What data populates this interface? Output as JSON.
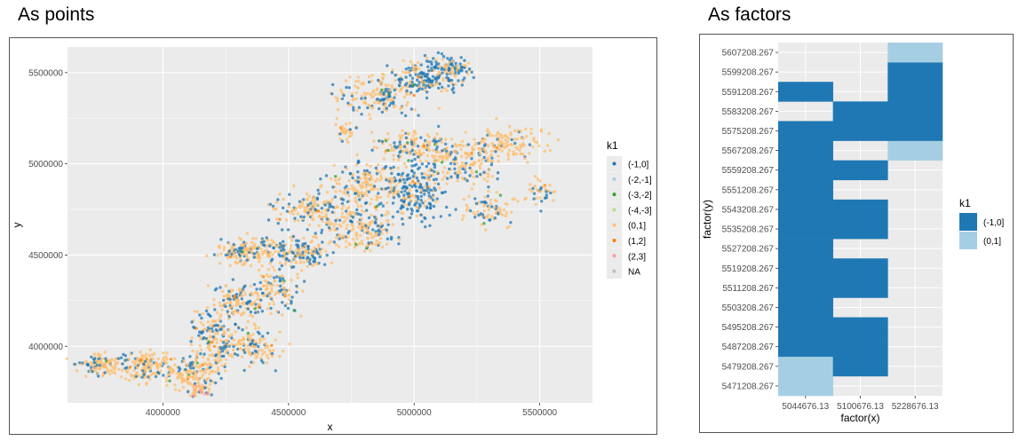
{
  "headings": {
    "left": "As points",
    "right": "As factors"
  },
  "colors": {
    "panel_bg": "#ebebeb",
    "grid": "#ffffff",
    "blue": "#1f78b4",
    "light_blue": "#a6cee3",
    "orange_light": "#fdbf6f",
    "orange": "#ff7f00",
    "pink": "#fb9a99",
    "green": "#33a02c",
    "light_green": "#b2df8a",
    "grey": "#bdbdbd"
  },
  "chart_data": [
    {
      "type": "scatter",
      "title": "",
      "xlabel": "x",
      "ylabel": "y",
      "xlim": [
        3620000,
        5710000
      ],
      "ylim": [
        3690000,
        5640000
      ],
      "x_ticks": [
        4000000,
        4500000,
        5000000,
        5500000
      ],
      "x_tick_labels": [
        "4000000",
        "4500000",
        "5000000",
        "5500000"
      ],
      "y_ticks": [
        4000000,
        4500000,
        5000000,
        5500000
      ],
      "y_tick_labels": [
        "4000000",
        "4500000",
        "5000000",
        "5500000"
      ],
      "grid": true,
      "legend": {
        "title": "k1",
        "position": "right",
        "entries": [
          {
            "label": "(-1,0]",
            "color": "#1f78b4"
          },
          {
            "label": "(-2,-1]",
            "color": "#a6cee3"
          },
          {
            "label": "(-3,-2]",
            "color": "#33a02c"
          },
          {
            "label": "(-4,-3]",
            "color": "#b2df8a"
          },
          {
            "label": "(0,1]",
            "color": "#fdbf6f"
          },
          {
            "label": "(1,2]",
            "color": "#ff7f00"
          },
          {
            "label": "(2,3]",
            "color": "#fb9a99"
          },
          {
            "label": "NA",
            "color": "#bdbdbd"
          }
        ]
      },
      "clusters": [
        {
          "cx": 3750000,
          "cy": 3900000,
          "sx": 60000,
          "sy": 45000,
          "n": 110,
          "blue": 0.3
        },
        {
          "cx": 3950000,
          "cy": 3880000,
          "sx": 90000,
          "sy": 60000,
          "n": 160,
          "blue": 0.25
        },
        {
          "cx": 4120000,
          "cy": 3850000,
          "sx": 70000,
          "sy": 70000,
          "n": 130,
          "blue": 0.2
        },
        {
          "cx": 4150000,
          "cy": 3760000,
          "sx": 35000,
          "sy": 25000,
          "n": 40,
          "blue": 0.05,
          "red": 0.4
        },
        {
          "cx": 4200000,
          "cy": 4050000,
          "sx": 60000,
          "sy": 110000,
          "n": 150,
          "blue": 0.35
        },
        {
          "cx": 4350000,
          "cy": 4000000,
          "sx": 80000,
          "sy": 80000,
          "n": 140,
          "blue": 0.25
        },
        {
          "cx": 4300000,
          "cy": 4250000,
          "sx": 70000,
          "sy": 70000,
          "n": 120,
          "blue": 0.4
        },
        {
          "cx": 4450000,
          "cy": 4300000,
          "sx": 70000,
          "sy": 90000,
          "n": 110,
          "blue": 0.3
        },
        {
          "cx": 4350000,
          "cy": 4520000,
          "sx": 110000,
          "sy": 50000,
          "n": 170,
          "blue": 0.3
        },
        {
          "cx": 4550000,
          "cy": 4520000,
          "sx": 90000,
          "sy": 70000,
          "n": 160,
          "blue": 0.45
        },
        {
          "cx": 4600000,
          "cy": 4750000,
          "sx": 110000,
          "sy": 70000,
          "n": 170,
          "blue": 0.3
        },
        {
          "cx": 4800000,
          "cy": 4650000,
          "sx": 90000,
          "sy": 90000,
          "n": 160,
          "blue": 0.25
        },
        {
          "cx": 4800000,
          "cy": 4900000,
          "sx": 100000,
          "sy": 80000,
          "n": 160,
          "blue": 0.2
        },
        {
          "cx": 5000000,
          "cy": 4850000,
          "sx": 90000,
          "sy": 120000,
          "n": 220,
          "blue": 0.65
        },
        {
          "cx": 5000000,
          "cy": 5100000,
          "sx": 120000,
          "sy": 60000,
          "n": 150,
          "blue": 0.25
        },
        {
          "cx": 5200000,
          "cy": 5000000,
          "sx": 120000,
          "sy": 90000,
          "n": 170,
          "blue": 0.3
        },
        {
          "cx": 5380000,
          "cy": 5120000,
          "sx": 110000,
          "sy": 70000,
          "n": 120,
          "blue": 0.15
        },
        {
          "cx": 5300000,
          "cy": 4750000,
          "sx": 80000,
          "sy": 70000,
          "n": 80,
          "blue": 0.3
        },
        {
          "cx": 5500000,
          "cy": 4850000,
          "sx": 40000,
          "sy": 60000,
          "n": 40,
          "blue": 0.4
        },
        {
          "cx": 4850000,
          "cy": 5380000,
          "sx": 120000,
          "sy": 90000,
          "n": 180,
          "blue": 0.3
        },
        {
          "cx": 5050000,
          "cy": 5480000,
          "sx": 90000,
          "sy": 70000,
          "n": 170,
          "blue": 0.75
        },
        {
          "cx": 4730000,
          "cy": 5180000,
          "sx": 30000,
          "sy": 50000,
          "n": 30,
          "blue": 0.1
        },
        {
          "cx": 5150000,
          "cy": 5530000,
          "sx": 60000,
          "sy": 50000,
          "n": 80,
          "blue": 0.6
        }
      ]
    },
    {
      "type": "heatmap",
      "xlabel": "factor(x)",
      "ylabel": "factor(y)",
      "categories_x": [
        "5044676.13",
        "5100676.13",
        "5228676.13"
      ],
      "categories_y": [
        "5471208.267",
        "5479208.267",
        "5487208.267",
        "5495208.267",
        "5503208.267",
        "5511208.267",
        "5519208.267",
        "5527208.267",
        "5535208.267",
        "5543208.267",
        "5551208.267",
        "5559208.267",
        "5567208.267",
        "5575208.267",
        "5583208.267",
        "5591208.267",
        "5599208.267",
        "5607208.267"
      ],
      "legend": {
        "title": "k1",
        "position": "right",
        "entries": [
          {
            "label": "(-1,0]",
            "color": "#1f78b4"
          },
          {
            "label": "(0,1]",
            "color": "#a6cee3"
          }
        ]
      },
      "cells": [
        {
          "x": "5044676.13",
          "y": "5471208.267",
          "k1": "(0,1]"
        },
        {
          "x": "5044676.13",
          "y": "5479208.267",
          "k1": "(0,1]"
        },
        {
          "x": "5044676.13",
          "y": "5487208.267",
          "k1": "(-1,0]"
        },
        {
          "x": "5044676.13",
          "y": "5495208.267",
          "k1": "(-1,0]"
        },
        {
          "x": "5044676.13",
          "y": "5503208.267",
          "k1": "(-1,0]"
        },
        {
          "x": "5044676.13",
          "y": "5511208.267",
          "k1": "(-1,0]"
        },
        {
          "x": "5044676.13",
          "y": "5519208.267",
          "k1": "(-1,0]"
        },
        {
          "x": "5044676.13",
          "y": "5527208.267",
          "k1": "(-1,0]"
        },
        {
          "x": "5044676.13",
          "y": "5535208.267",
          "k1": "(-1,0]"
        },
        {
          "x": "5044676.13",
          "y": "5543208.267",
          "k1": "(-1,0]"
        },
        {
          "x": "5044676.13",
          "y": "5551208.267",
          "k1": "(-1,0]"
        },
        {
          "x": "5044676.13",
          "y": "5559208.267",
          "k1": "(-1,0]"
        },
        {
          "x": "5044676.13",
          "y": "5567208.267",
          "k1": "(-1,0]"
        },
        {
          "x": "5044676.13",
          "y": "5575208.267",
          "k1": "(-1,0]"
        },
        {
          "x": "5044676.13",
          "y": "5591208.267",
          "k1": "(-1,0]"
        },
        {
          "x": "5100676.13",
          "y": "5479208.267",
          "k1": "(-1,0]"
        },
        {
          "x": "5100676.13",
          "y": "5487208.267",
          "k1": "(-1,0]"
        },
        {
          "x": "5100676.13",
          "y": "5495208.267",
          "k1": "(-1,0]"
        },
        {
          "x": "5100676.13",
          "y": "5511208.267",
          "k1": "(-1,0]"
        },
        {
          "x": "5100676.13",
          "y": "5519208.267",
          "k1": "(-1,0]"
        },
        {
          "x": "5100676.13",
          "y": "5535208.267",
          "k1": "(-1,0]"
        },
        {
          "x": "5100676.13",
          "y": "5543208.267",
          "k1": "(-1,0]"
        },
        {
          "x": "5100676.13",
          "y": "5559208.267",
          "k1": "(-1,0]"
        },
        {
          "x": "5100676.13",
          "y": "5575208.267",
          "k1": "(-1,0]"
        },
        {
          "x": "5100676.13",
          "y": "5583208.267",
          "k1": "(-1,0]"
        },
        {
          "x": "5228676.13",
          "y": "5567208.267",
          "k1": "(0,1]"
        },
        {
          "x": "5228676.13",
          "y": "5575208.267",
          "k1": "(-1,0]"
        },
        {
          "x": "5228676.13",
          "y": "5583208.267",
          "k1": "(-1,0]"
        },
        {
          "x": "5228676.13",
          "y": "5591208.267",
          "k1": "(-1,0]"
        },
        {
          "x": "5228676.13",
          "y": "5599208.267",
          "k1": "(-1,0]"
        },
        {
          "x": "5228676.13",
          "y": "5607208.267",
          "k1": "(0,1]"
        }
      ]
    }
  ]
}
